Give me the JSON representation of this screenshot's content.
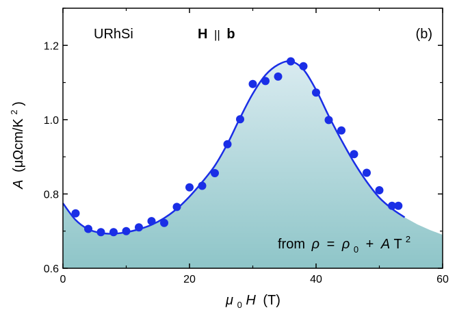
{
  "chart_data": {
    "type": "scatter",
    "panel_label": "(b)",
    "annotations": {
      "compound": "URhSi",
      "field_dir_H": "H",
      "field_dir_bars": "||",
      "field_dir_b": "b",
      "formula_from": "from",
      "formula_rho": "ρ",
      "formula_eq": "=",
      "formula_rho0": "ρ",
      "formula_rho0_sub": "0",
      "formula_plus": "+",
      "formula_A": "A",
      "formula_T": "T",
      "formula_T_sup": "2"
    },
    "xlabel": {
      "mu": "μ",
      "mu_sub": "0",
      "H": "H",
      "unit": "(T)"
    },
    "ylabel": {
      "A": "A",
      "unit_pre": "(μΩcm/K",
      "unit_sup": "2",
      "unit_post": ")"
    },
    "xlim": [
      0,
      60
    ],
    "ylim": [
      0.6,
      1.3
    ],
    "xticks": [
      0,
      20,
      40,
      60
    ],
    "yticks": [
      0.6,
      0.8,
      1.0,
      1.2
    ],
    "xtick_labels": [
      "0",
      "20",
      "40",
      "60"
    ],
    "ytick_labels": [
      "0.6",
      "0.8",
      "1.0",
      "1.2"
    ],
    "series": [
      {
        "kind": "points",
        "color": "#1a2ee6",
        "x": [
          2,
          4,
          6,
          8,
          10,
          12,
          14,
          16,
          18,
          20,
          22,
          24,
          26,
          28,
          30,
          32,
          34,
          36,
          38,
          40,
          42,
          44,
          46,
          48,
          50,
          52,
          53
        ],
        "y": [
          0.748,
          0.706,
          0.697,
          0.697,
          0.7,
          0.71,
          0.727,
          0.722,
          0.765,
          0.818,
          0.822,
          0.856,
          0.934,
          1.001,
          1.096,
          1.104,
          1.116,
          1.157,
          1.144,
          1.073,
          0.999,
          0.971,
          0.907,
          0.857,
          0.81,
          0.768,
          0.768
        ]
      },
      {
        "kind": "line",
        "color": "#1a2ee6",
        "x": [
          0,
          2,
          4,
          6,
          8,
          10,
          12,
          14,
          16,
          18,
          20,
          22,
          24,
          26,
          28,
          30,
          32,
          34,
          36,
          38,
          40,
          42,
          44,
          46,
          48,
          50,
          52,
          54
        ],
        "y": [
          0.775,
          0.73,
          0.705,
          0.695,
          0.693,
          0.697,
          0.705,
          0.717,
          0.735,
          0.76,
          0.793,
          0.832,
          0.876,
          0.935,
          1.005,
          1.07,
          1.12,
          1.148,
          1.157,
          1.135,
          1.08,
          1.01,
          0.945,
          0.885,
          0.833,
          0.79,
          0.76,
          0.737
        ]
      },
      {
        "kind": "area",
        "color_top": "#d9ebf0",
        "color_bottom": "#8ec5c8",
        "x": [
          0,
          2,
          4,
          6,
          8,
          10,
          12,
          14,
          16,
          18,
          20,
          22,
          24,
          26,
          28,
          30,
          32,
          34,
          36,
          38,
          40,
          42,
          44,
          46,
          48,
          50,
          52,
          54,
          56,
          58,
          60
        ],
        "y": [
          0.775,
          0.73,
          0.705,
          0.695,
          0.693,
          0.697,
          0.705,
          0.717,
          0.735,
          0.76,
          0.793,
          0.832,
          0.876,
          0.935,
          1.005,
          1.07,
          1.12,
          1.148,
          1.157,
          1.135,
          1.08,
          1.01,
          0.945,
          0.885,
          0.833,
          0.79,
          0.76,
          0.737,
          0.718,
          0.703,
          0.69
        ]
      }
    ]
  }
}
